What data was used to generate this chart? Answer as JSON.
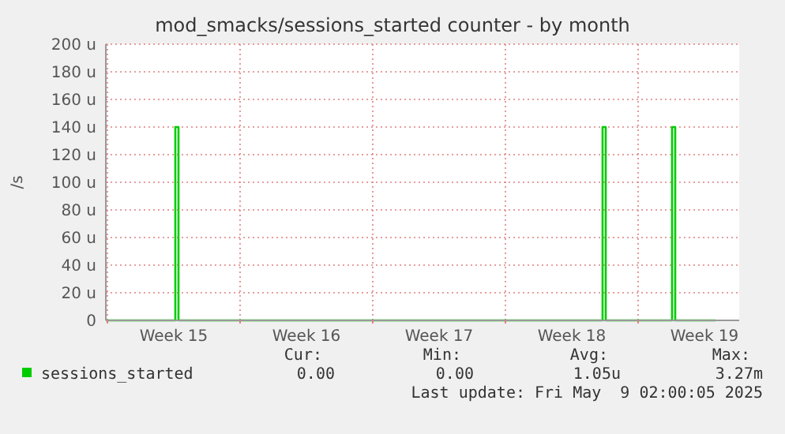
{
  "chart_data": {
    "type": "line",
    "title": "mod_smacks/sessions_started counter - by month",
    "ylabel": "/s",
    "xlim": [
      "2025-04-06T22:00",
      "2025-05-10T08:00"
    ],
    "xticks": [
      {
        "value": "2025-04-07T00:00",
        "label": null
      },
      {
        "value": "2025-04-10T12:00",
        "label": "Week 15"
      },
      {
        "value": "2025-04-14T00:00",
        "label": null
      },
      {
        "value": "2025-04-17T12:00",
        "label": "Week 16"
      },
      {
        "value": "2025-04-21T00:00",
        "label": null
      },
      {
        "value": "2025-04-24T12:00",
        "label": "Week 17"
      },
      {
        "value": "2025-04-28T00:00",
        "label": null
      },
      {
        "value": "2025-05-01T12:00",
        "label": "Week 18"
      },
      {
        "value": "2025-05-05T00:00",
        "label": null
      },
      {
        "value": "2025-05-08T12:00",
        "label": "Week 19"
      }
    ],
    "ylim": [
      0,
      200
    ],
    "yticks": [
      {
        "value": 0,
        "label": "0"
      },
      {
        "value": 20,
        "label": "20 u"
      },
      {
        "value": 40,
        "label": "40 u"
      },
      {
        "value": 60,
        "label": "60 u"
      },
      {
        "value": 80,
        "label": "80 u"
      },
      {
        "value": 100,
        "label": "100 u"
      },
      {
        "value": 120,
        "label": "120 u"
      },
      {
        "value": 140,
        "label": "140 u"
      },
      {
        "value": 160,
        "label": "160 u"
      },
      {
        "value": 180,
        "label": "180 u"
      },
      {
        "value": 200,
        "label": "200 u"
      }
    ],
    "grid": true,
    "legend": "bottom",
    "marker": "none",
    "line_style": "solid",
    "series": [
      {
        "name": "sessions_started",
        "color": "#00cc00",
        "x": [
          "2025-04-06T22:00",
          "2025-04-10T14:00",
          "2025-04-10T14:00",
          "2025-04-10T18:00",
          "2025-04-10T18:00",
          "2025-05-03T03:00",
          "2025-05-03T03:00",
          "2025-05-03T07:00",
          "2025-05-03T07:00",
          "2025-05-06T19:00",
          "2025-05-06T19:00",
          "2025-05-06T23:00",
          "2025-05-06T23:00",
          "2025-05-09T02:00"
        ],
        "values": [
          0,
          0,
          140,
          140,
          0,
          0,
          140,
          140,
          0,
          0,
          140,
          140,
          0,
          0
        ]
      }
    ],
    "annotations": [
      "Cur:",
      "Min:",
      "Avg:",
      "Max:",
      "0.00",
      "0.00",
      "1.05u",
      "3.27m",
      "Last update: Fri May  9 02:00:05 2025"
    ]
  }
}
